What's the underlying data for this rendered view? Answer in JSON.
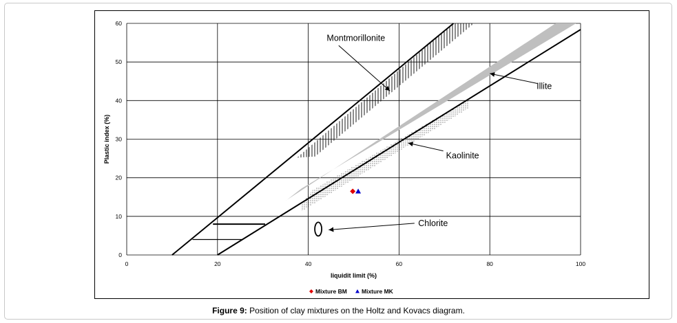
{
  "caption": {
    "label": "Figure 9:",
    "text": " Position of clay mixtures on the Holtz and Kovacs diagram."
  },
  "chart_data": {
    "type": "scatter",
    "title": "",
    "xlabel": "liquidit limit (%)",
    "ylabel": "Plastic index (%)",
    "xlim": [
      0,
      100
    ],
    "ylim": [
      0,
      60
    ],
    "xticks": [
      "0",
      "20",
      "40",
      "60",
      "80",
      "100"
    ],
    "yticks": [
      "0",
      "10",
      "20",
      "30",
      "40",
      "50",
      "60"
    ],
    "grid": true,
    "legend_position": "bottom",
    "reference_lines": [
      {
        "name": "U-line",
        "points": [
          [
            10,
            0
          ],
          [
            72,
            60
          ]
        ]
      },
      {
        "name": "A-line",
        "points": [
          [
            20,
            0
          ],
          [
            100,
            58.4
          ]
        ]
      }
    ],
    "horizontal_segments": [
      {
        "y": 8,
        "x": [
          19,
          30.5
        ]
      },
      {
        "y": 4,
        "x": [
          14.5,
          25.5
        ]
      }
    ],
    "regions": [
      {
        "name": "Montmorillonite",
        "label_at": [
          50.5,
          55.5
        ],
        "arrow_to": [
          58,
          42.5
        ]
      },
      {
        "name": "Illite",
        "label_at": [
          92,
          43
        ],
        "arrow_to": [
          80,
          47
        ]
      },
      {
        "name": "Kaolinite",
        "label_at": [
          74,
          25
        ],
        "arrow_to": [
          62,
          29
        ]
      },
      {
        "name": "Chlorite",
        "label_at": [
          67.5,
          7.5
        ],
        "arrow_to": [
          44.5,
          6.5
        ]
      }
    ],
    "series": [
      {
        "name": "Mixture BM",
        "color": "#e00000",
        "marker": "diamond",
        "points": [
          [
            49.8,
            16.5
          ]
        ]
      },
      {
        "name": "Mixture MK",
        "color": "#0000cc",
        "marker": "triangle",
        "points": [
          [
            51,
            16.5
          ]
        ]
      }
    ]
  }
}
